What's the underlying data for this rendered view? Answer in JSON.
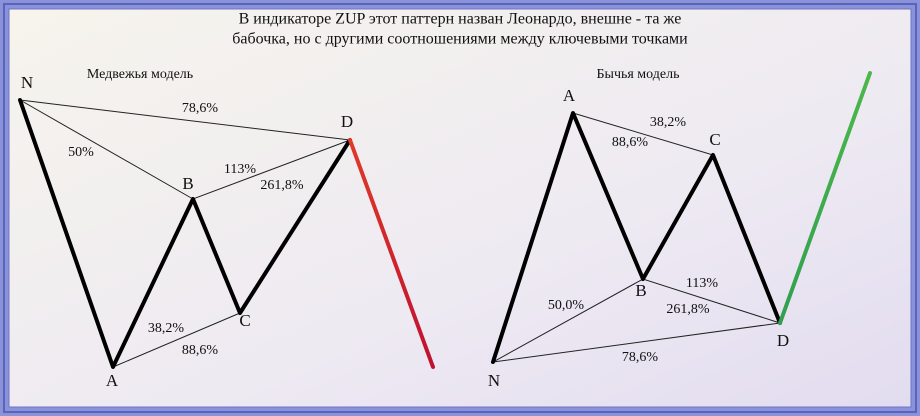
{
  "title": [
    "В индикаторе ZUP этот паттерн назван Леонардо, внешне - та же",
    "бабочка, но с другими соотношениями между ключевыми точками"
  ],
  "bearish": {
    "title": "Медвежья модель",
    "points": [
      "N",
      "A",
      "B",
      "C",
      "D"
    ],
    "ratios": [
      "78,6%",
      "50%",
      "113%",
      "261,8%",
      "38,2%",
      "88,6%"
    ]
  },
  "bullish": {
    "title": "Бычья модель",
    "points": [
      "N",
      "A",
      "B",
      "C",
      "D"
    ],
    "ratios": [
      "38,2%",
      "88,6%",
      "50,0%",
      "113%",
      "261,8%",
      "78,6%"
    ]
  }
}
